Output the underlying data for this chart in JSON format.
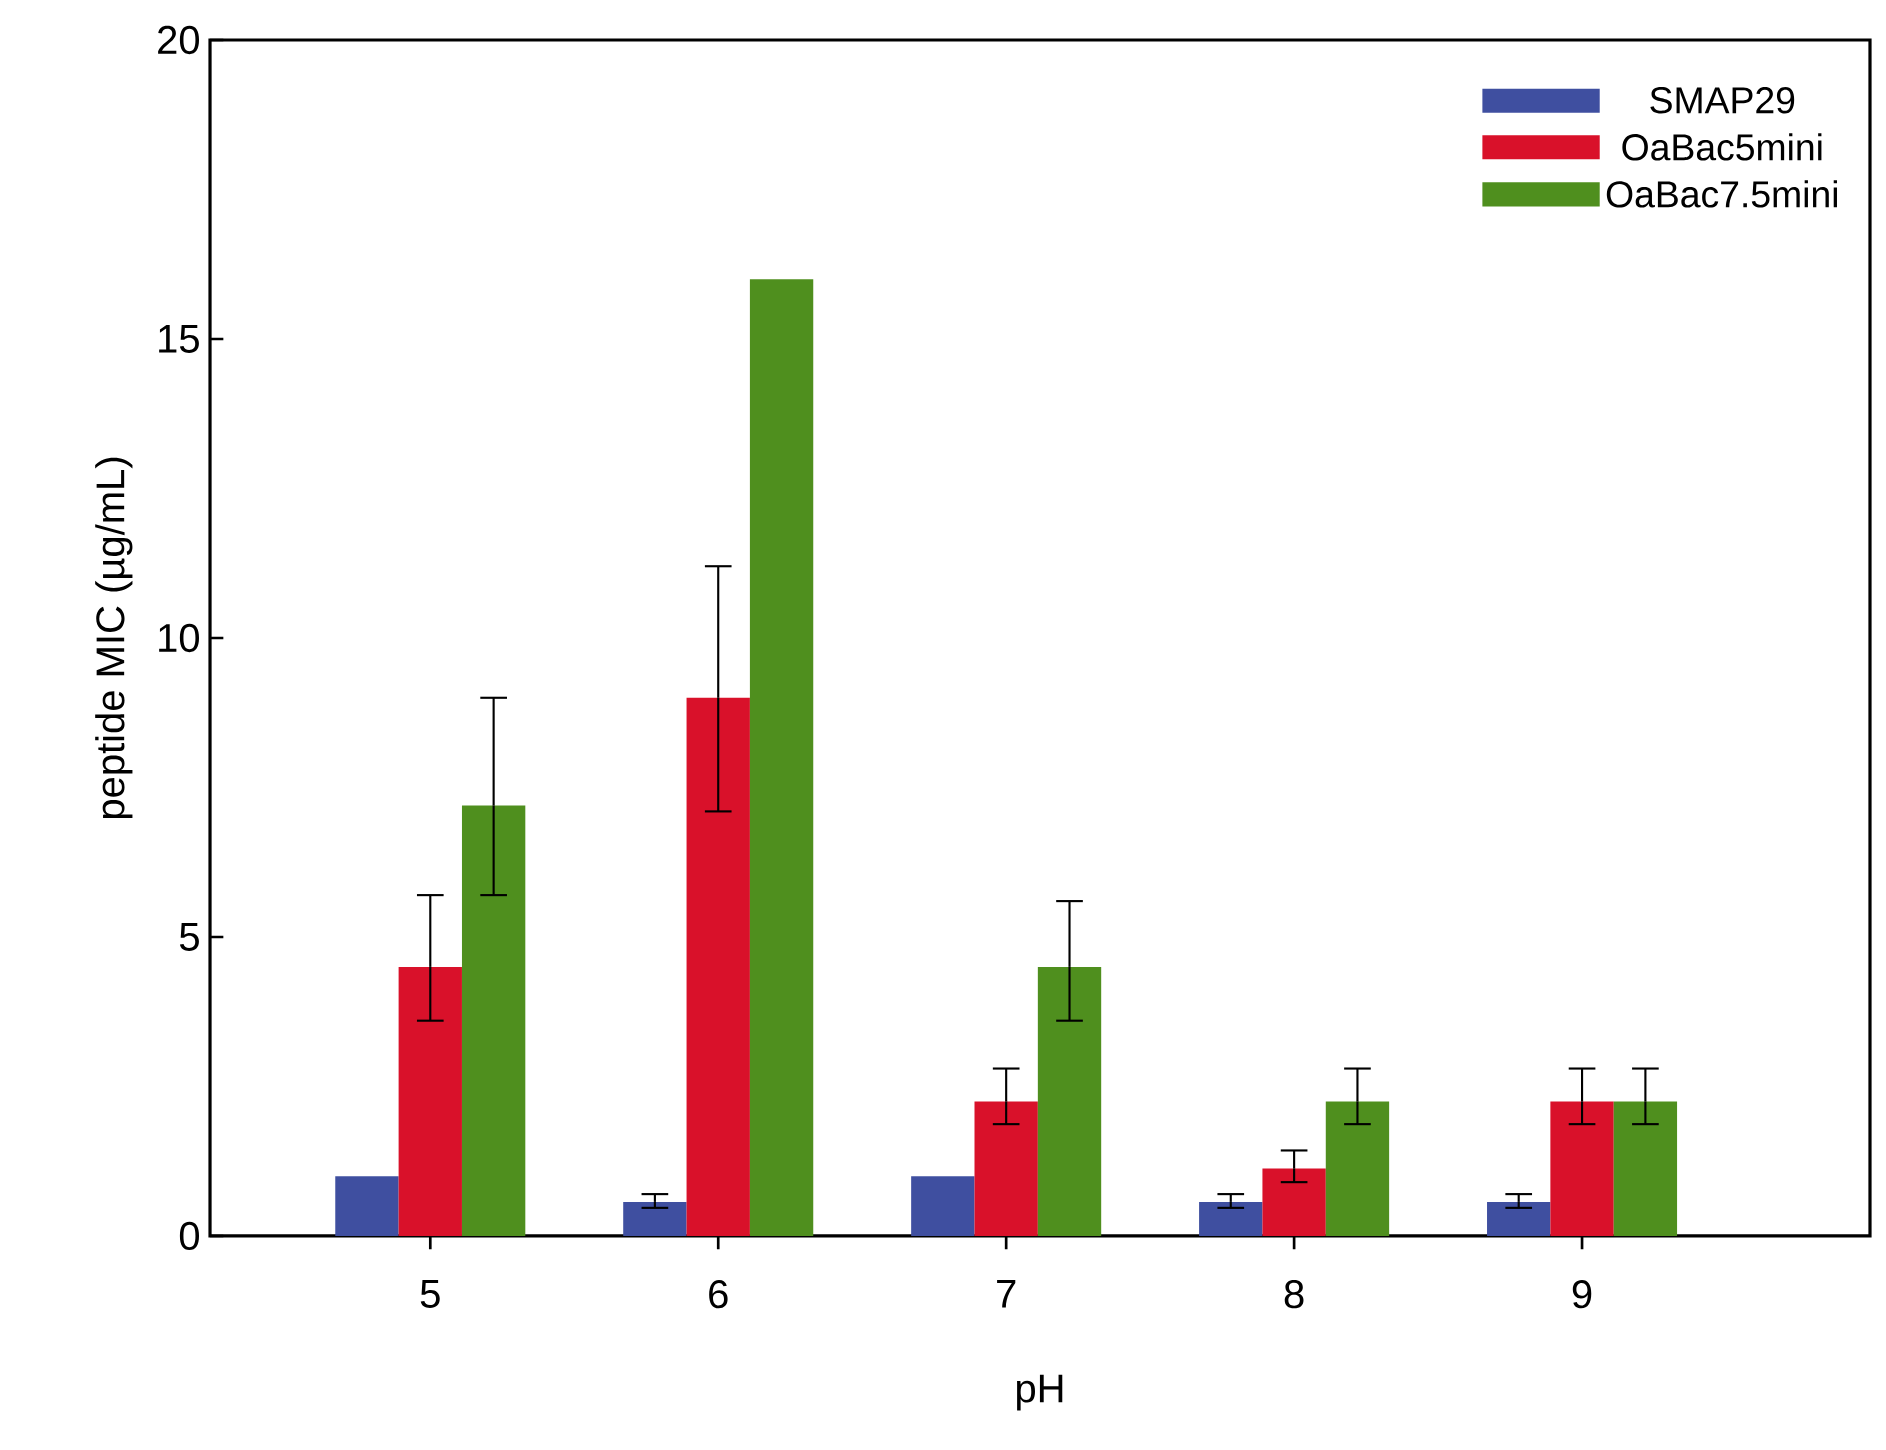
{
  "chart_data": {
    "type": "bar",
    "xlabel": "pH",
    "ylabel": "peptide MIC (µg/mL)",
    "categories": [
      "5",
      "6",
      "7",
      "8",
      "9"
    ],
    "series": [
      {
        "name": "SMAP29",
        "color": "#3f4fa0",
        "values": [
          1.0,
          0.57,
          1.0,
          0.57,
          0.57
        ],
        "errors": [
          null,
          [
            0.47,
            0.7
          ],
          null,
          [
            0.47,
            0.7
          ],
          [
            0.47,
            0.7
          ]
        ]
      },
      {
        "name": "OaBac5mini",
        "color": "#d9112a",
        "values": [
          4.5,
          9.0,
          2.25,
          1.13,
          2.25
        ],
        "errors": [
          [
            3.6,
            5.7
          ],
          [
            7.1,
            11.2
          ],
          [
            1.87,
            2.8
          ],
          [
            0.9,
            1.43
          ],
          [
            1.87,
            2.8
          ]
        ]
      },
      {
        "name": "OaBac7.5mini",
        "color": "#4f8f1e",
        "values": [
          7.2,
          16.0,
          4.5,
          2.25,
          2.25
        ],
        "errors": [
          [
            5.7,
            9.0
          ],
          null,
          [
            3.6,
            5.6
          ],
          [
            1.87,
            2.8
          ],
          [
            1.87,
            2.8
          ]
        ]
      }
    ],
    "ylim": [
      0,
      20
    ],
    "yticks": [
      0,
      5,
      10,
      15,
      20
    ],
    "grid": false,
    "legend": "top right"
  }
}
